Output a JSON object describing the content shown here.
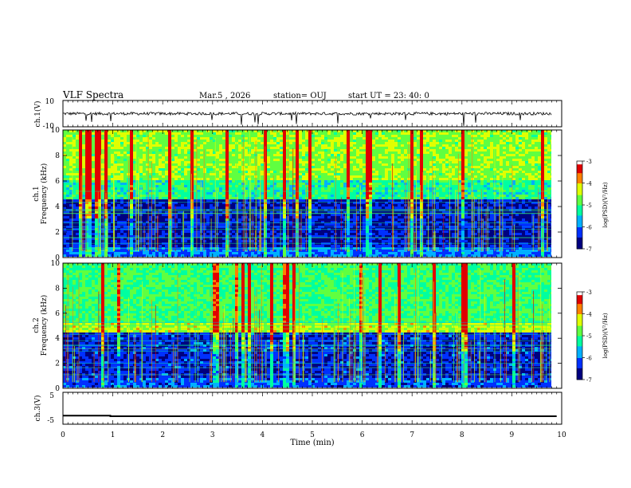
{
  "header": {
    "title": "VLF Spectra",
    "date": "Mar.5 , 2026",
    "station": "station= OUJ",
    "start": "start UT = 23: 40: 0"
  },
  "chart_data": [
    {
      "type": "line",
      "name": "ch1-waveform",
      "ylabel": "ch.1(V)",
      "ylim": [
        -10,
        10
      ],
      "yticks": [
        "10",
        "-10"
      ],
      "baseline": 0,
      "note": "noisy waveform centred near 0 V with occasional negative spikes"
    },
    {
      "type": "heatmap",
      "name": "ch1-spectrogram",
      "ylabel_top": "ch.1",
      "ylabel": "Frequency (kHz)",
      "ylim": [
        0,
        10
      ],
      "yticks": [
        "0",
        "2",
        "4",
        "6",
        "8",
        "10"
      ],
      "xlim": [
        0,
        10
      ],
      "colorbar": {
        "label": "log(PSD)(V²/Hz)",
        "range": [
          -7,
          -3
        ],
        "ticks": [
          "-3",
          "-4",
          "-5",
          "-6",
          "-7"
        ],
        "colors": [
          "#000080",
          "#0030ff",
          "#00b0ff",
          "#00ffa0",
          "#60ff40",
          "#e0ff00",
          "#ff8000",
          "#e00000",
          "#ffffff"
        ]
      },
      "bands": [
        {
          "f0": 0,
          "f1": 0.8,
          "level": 0.25
        },
        {
          "f0": 0.8,
          "f1": 4.5,
          "level": 0.12
        },
        {
          "f0": 4.5,
          "f1": 6,
          "level": 0.45
        },
        {
          "f0": 6,
          "f1": 10,
          "level": 0.6
        }
      ]
    },
    {
      "type": "heatmap",
      "name": "ch2-spectrogram",
      "ylabel_top": "ch.2",
      "ylabel": "Frequency (kHz)",
      "ylim": [
        0,
        10
      ],
      "yticks": [
        "0",
        "2",
        "4",
        "6",
        "8",
        "10"
      ],
      "xlim": [
        0,
        10
      ],
      "colorbar": {
        "label": "log(PSD)(V²/Hz)",
        "range": [
          -7,
          -3
        ],
        "ticks": [
          "-3",
          "-4",
          "-5",
          "-6",
          "-7"
        ],
        "colors": [
          "#000080",
          "#0030ff",
          "#00b0ff",
          "#00ffa0",
          "#60ff40",
          "#e0ff00",
          "#ff8000",
          "#e00000",
          "#ffffff"
        ]
      },
      "bands": [
        {
          "f0": 0,
          "f1": 0.8,
          "level": 0.2
        },
        {
          "f0": 0.8,
          "f1": 4.5,
          "level": 0.15
        },
        {
          "f0": 4.5,
          "f1": 5.3,
          "level": 0.65
        },
        {
          "f0": 5.3,
          "f1": 10,
          "level": 0.5
        }
      ]
    },
    {
      "type": "line",
      "name": "ch3-signal",
      "ylabel": "ch.3(V)",
      "ylim": [
        -5,
        5
      ],
      "yticks": [
        "5",
        "-5"
      ],
      "x": [
        0,
        0.95,
        0.95,
        9.9
      ],
      "y": [
        -2.3,
        -2.3,
        -2.5,
        -2.5
      ],
      "xlabel": "Time (min)",
      "xlim": [
        0,
        10
      ],
      "xticks": [
        "0",
        "1",
        "2",
        "3",
        "4",
        "5",
        "6",
        "7",
        "8",
        "9",
        "10"
      ]
    }
  ]
}
